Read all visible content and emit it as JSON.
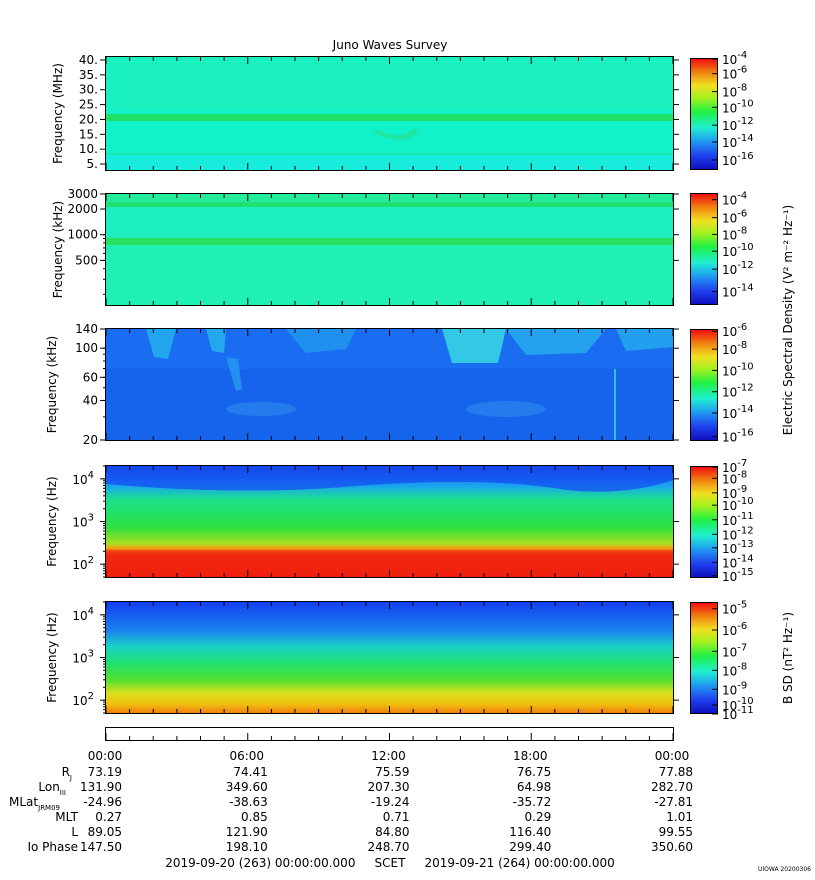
{
  "chart_data": {
    "type": "heatmap",
    "title": "Juno Waves Survey",
    "x_range": [
      "2019-09-20 00:00:00",
      "2019-09-21 00:00:00"
    ],
    "x_ticks": [
      "00:00",
      "06:00",
      "12:00",
      "18:00",
      "00:00"
    ],
    "panels": [
      {
        "ylabel": "Frequency (MHz)",
        "yscale": "linear",
        "ylim": [
          3,
          41
        ],
        "yticks": [
          {
            "v": 40,
            "label": "40."
          },
          {
            "v": 35,
            "label": "35."
          },
          {
            "v": 30,
            "label": "30."
          },
          {
            "v": 25,
            "label": "25."
          },
          {
            "v": 20,
            "label": "20."
          },
          {
            "v": 15,
            "label": "15."
          },
          {
            "v": 10,
            "label": "10."
          },
          {
            "v": 5,
            "label": "5."
          }
        ],
        "colorbar_ticks": [
          {
            "exp": "-4",
            "pos": 0.01
          },
          {
            "exp": "-6",
            "pos": 0.14
          },
          {
            "exp": "-8",
            "pos": 0.3
          },
          {
            "exp": "-10",
            "pos": 0.44
          },
          {
            "exp": "-12",
            "pos": 0.6
          },
          {
            "exp": "-14",
            "pos": 0.75
          },
          {
            "exp": "-16",
            "pos": 0.91
          }
        ]
      },
      {
        "ylabel": "Frequency (kHz)",
        "yscale": "log",
        "ylim": [
          150,
          3000
        ],
        "yticks": [
          {
            "v": 3000,
            "label": "3000"
          },
          {
            "v": 2000,
            "label": "2000"
          },
          {
            "v": 1000,
            "label": "1000"
          },
          {
            "v": 500,
            "label": "500"
          }
        ],
        "colorbar_ticks": [
          {
            "exp": "-4",
            "pos": 0.06
          },
          {
            "exp": "-6",
            "pos": 0.22
          },
          {
            "exp": "-8",
            "pos": 0.37
          },
          {
            "exp": "-10",
            "pos": 0.52
          },
          {
            "exp": "-12",
            "pos": 0.68
          },
          {
            "exp": "-14",
            "pos": 0.88
          }
        ]
      },
      {
        "ylabel": "Frequency (kHz)",
        "yscale": "log",
        "ylim": [
          20,
          140
        ],
        "yticks": [
          {
            "v": 140,
            "label": "140"
          },
          {
            "v": 100,
            "label": "100"
          },
          {
            "v": 60,
            "label": "60"
          },
          {
            "v": 40,
            "label": "40"
          },
          {
            "v": 20,
            "label": "20"
          }
        ],
        "colorbar_ticks": [
          {
            "exp": "-6",
            "pos": 0.02
          },
          {
            "exp": "-8",
            "pos": 0.18
          },
          {
            "exp": "-10",
            "pos": 0.37
          },
          {
            "exp": "-12",
            "pos": 0.56
          },
          {
            "exp": "-14",
            "pos": 0.75
          },
          {
            "exp": "-16",
            "pos": 0.96
          }
        ]
      },
      {
        "ylabel": "Frequency (Hz)",
        "yscale": "log",
        "ylim": [
          50,
          20000
        ],
        "yticks": [
          {
            "v": 10000,
            "exp": "4"
          },
          {
            "v": 1000,
            "exp": "3"
          },
          {
            "v": 100,
            "exp": "2"
          }
        ],
        "colorbar_ticks": [
          {
            "exp": "-7",
            "pos": 0.01
          },
          {
            "exp": "-8",
            "pos": 0.11
          },
          {
            "exp": "-9",
            "pos": 0.24
          },
          {
            "exp": "-10",
            "pos": 0.35
          },
          {
            "exp": "-11",
            "pos": 0.48
          },
          {
            "exp": "-12",
            "pos": 0.61
          },
          {
            "exp": "-13",
            "pos": 0.73
          },
          {
            "exp": "-14",
            "pos": 0.86
          },
          {
            "exp": "-15",
            "pos": 0.98
          }
        ]
      },
      {
        "ylabel": "Frequency (Hz)",
        "yscale": "log",
        "ylim": [
          50,
          20000
        ],
        "yticks": [
          {
            "v": 10000,
            "exp": "4"
          },
          {
            "v": 1000,
            "exp": "3"
          },
          {
            "v": 100,
            "exp": "2"
          }
        ],
        "colorbar_ticks": [
          {
            "exp": "-5",
            "pos": 0.06
          },
          {
            "exp": "-6",
            "pos": 0.25
          },
          {
            "exp": "-7",
            "pos": 0.44
          },
          {
            "exp": "-8",
            "pos": 0.61
          },
          {
            "exp": "-9",
            "pos": 0.78
          },
          {
            "exp": "-10",
            "pos": 0.92
          },
          {
            "exp": "-11",
            "pos": 1.0
          }
        ]
      }
    ],
    "colorbar_label_e": "Electric Spectral Density (V² m⁻² Hz⁻¹)",
    "colorbar_label_b": "B SD (nT² Hz⁻¹)",
    "ephemeris": {
      "rows": [
        {
          "label": "R",
          "sub": "J",
          "values": [
            "73.19",
            "74.41",
            "75.59",
            "76.75",
            "77.88"
          ]
        },
        {
          "label": "Lon",
          "sub": "III",
          "values": [
            "131.90",
            "349.60",
            "207.30",
            "64.98",
            "282.70"
          ]
        },
        {
          "label": "MLat",
          "sub": "JRM09",
          "values": [
            "-24.96",
            "-38.63",
            "-19.24",
            "-35.72",
            "-27.81"
          ]
        },
        {
          "label": "MLT",
          "sub": "",
          "values": [
            "0.27",
            "0.85",
            "0.71",
            "0.29",
            "1.01"
          ]
        },
        {
          "label": "L",
          "sub": "",
          "values": [
            "89.05",
            "121.90",
            "84.80",
            "116.40",
            "99.55"
          ]
        },
        {
          "label": "Io Phase",
          "sub": "",
          "values": [
            "147.50",
            "198.10",
            "248.70",
            "299.40",
            "350.60"
          ]
        }
      ]
    },
    "footer": {
      "start": "2019-09-20 (263) 00:00:00.000",
      "label": "SCET",
      "end": "2019-09-21 (264) 00:00:00.000"
    },
    "stamp": "UIOWA 20200306"
  }
}
